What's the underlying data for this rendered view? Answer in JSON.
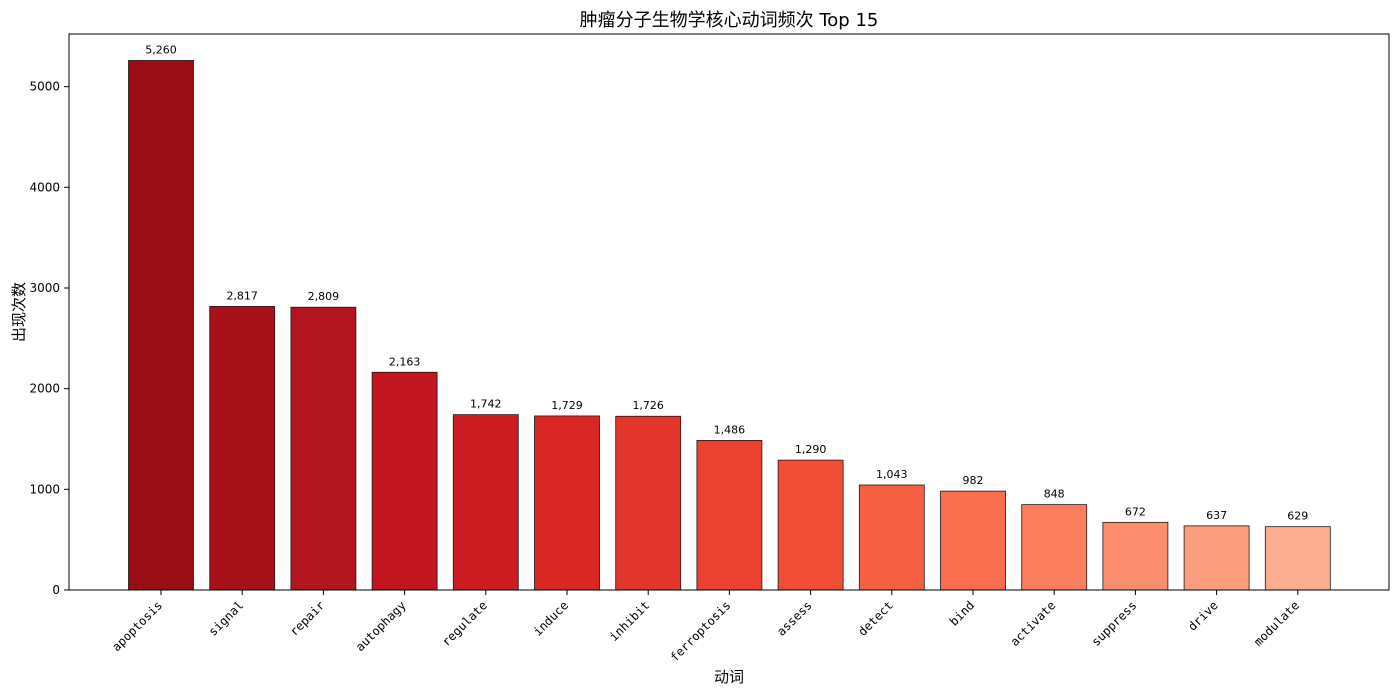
{
  "chart_data": {
    "type": "bar",
    "title": "肿瘤分子生物学核心动词频次 Top 15",
    "xlabel": "动词",
    "ylabel": "出现次数",
    "categories": [
      "apoptosis",
      "signal",
      "repair",
      "autophagy",
      "regulate",
      "induce",
      "inhibit",
      "ferroptosis",
      "assess",
      "detect",
      "bind",
      "activate",
      "suppress",
      "drive",
      "modulate"
    ],
    "values": [
      5260,
      2817,
      2809,
      2163,
      1742,
      1729,
      1726,
      1486,
      1290,
      1043,
      982,
      848,
      672,
      637,
      629
    ],
    "value_labels": [
      "5,260",
      "2,817",
      "2,809",
      "2,163",
      "1,742",
      "1,729",
      "1,726",
      "1,486",
      "1,290",
      "1,043",
      "982",
      "848",
      "672",
      "637",
      "629"
    ],
    "yticks": [
      0,
      1000,
      2000,
      3000,
      4000,
      5000
    ],
    "ylim": [
      0,
      5523
    ],
    "grid": false,
    "legend": "none",
    "colors": [
      "#990d14",
      "#a6111a",
      "#b3151e",
      "#c1161f",
      "#cd1c22",
      "#d92726",
      "#e2352c",
      "#eb4130",
      "#f24d36",
      "#f65f41",
      "#fa6e50",
      "#fb7f5f",
      "#fc8e6f",
      "#fc9d7f",
      "#fcac8f"
    ],
    "bar_edge_color": "#1a1a1a"
  }
}
